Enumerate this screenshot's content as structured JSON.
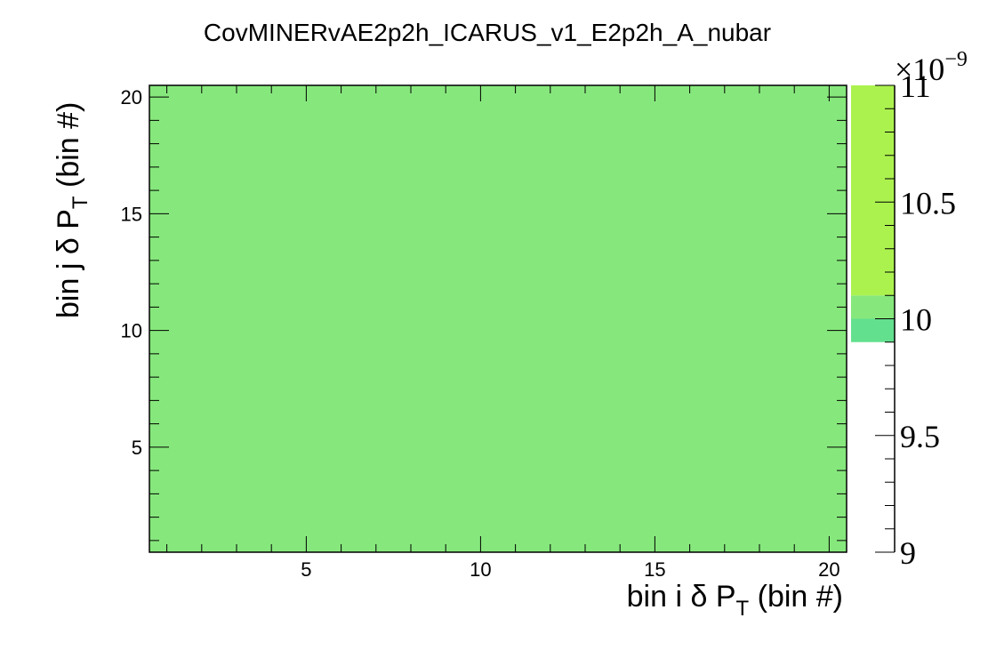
{
  "chart_data": {
    "type": "heatmap",
    "title": "CovMINERvAE2p2h_ICARUS_v1_E2p2h_A_nubar",
    "xlabel": "bin i δ P_T (bin #)",
    "ylabel": "bin j δ P_T (bin #)",
    "xlim": [
      0.5,
      20.5
    ],
    "ylim": [
      0.5,
      20.5
    ],
    "x_ticks": [
      5,
      10,
      15,
      20
    ],
    "y_ticks": [
      5,
      10,
      15,
      20
    ],
    "z_range": [
      9,
      11
    ],
    "z_exponent": "×10^-9",
    "z_ticks": [
      "9",
      "9.5",
      "10",
      "10.5",
      "11"
    ],
    "cell_value": 10,
    "cell_color": "#86e87c",
    "palette_bands": [
      {
        "from": 9.9,
        "to": 10.0,
        "color": "#63e08e"
      },
      {
        "from": 10.0,
        "to": 10.1,
        "color": "#86e87c"
      },
      {
        "from": 10.1,
        "to": 11.0,
        "color": "#acf24f"
      }
    ],
    "grid": false,
    "legend": "none"
  }
}
